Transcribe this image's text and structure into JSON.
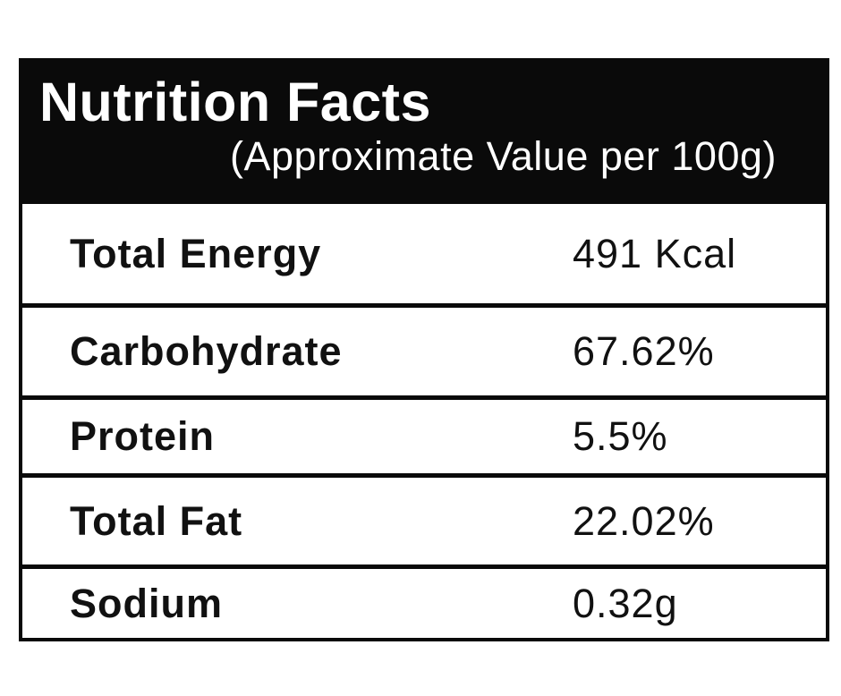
{
  "label": {
    "title": "Nutrition Facts",
    "subtitle": "(Approximate Value per 100g)",
    "rows": [
      {
        "name": "Total Energy",
        "value": "491 Kcal"
      },
      {
        "name": "Carbohydrate",
        "value": "67.62%"
      },
      {
        "name": "Protein",
        "value": "5.5%"
      },
      {
        "name": "Total Fat",
        "value": "22.02%"
      },
      {
        "name": "Sodium",
        "value": "0.32g"
      }
    ],
    "colors": {
      "panel_black": "#0a0a0a",
      "background": "#ffffff",
      "text_light": "#ffffff",
      "text_dark": "#111111"
    }
  }
}
